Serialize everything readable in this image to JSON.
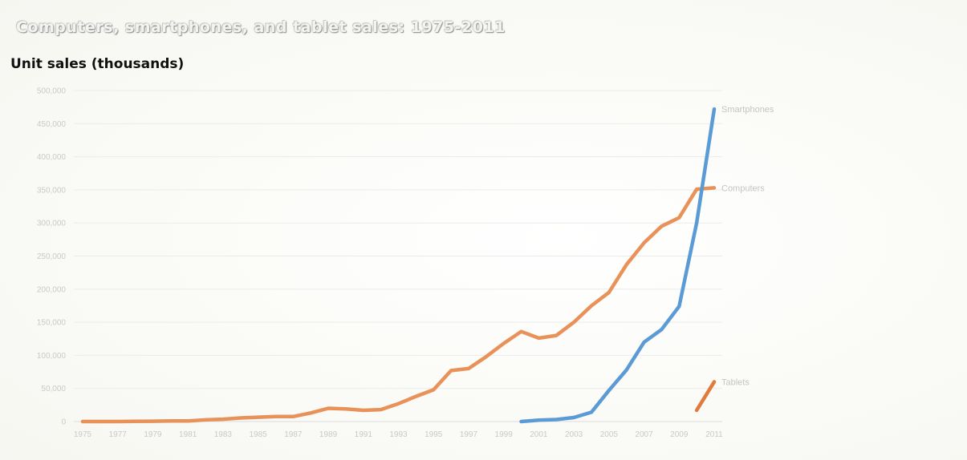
{
  "chart_data": {
    "type": "line",
    "title": "Computers, smartphones, and tablet sales: 1975-2011",
    "ylabel": "Unit sales (thousands)",
    "xlabel": "",
    "xlim": [
      1975,
      2011
    ],
    "ylim": [
      0,
      500000
    ],
    "x_ticks": [
      "1975",
      "1977",
      "1979",
      "1981",
      "1983",
      "1985",
      "1987",
      "1989",
      "1991",
      "1993",
      "1995",
      "1997",
      "1999",
      "2001",
      "2003",
      "2005",
      "2007",
      "2009",
      "2011"
    ],
    "y_ticks": [
      "0",
      "50,000",
      "100,000",
      "150,000",
      "200,000",
      "250,000",
      "300,000",
      "350,000",
      "400,000",
      "450,000",
      "500,000"
    ],
    "y_tick_values": [
      0,
      50000,
      100000,
      150000,
      200000,
      250000,
      300000,
      350000,
      400000,
      450000,
      500000
    ],
    "grid": true,
    "legend": "inline labels at line ends",
    "series": [
      {
        "name": "Computers",
        "color": "#e8925a",
        "x": [
          1975,
          1976,
          1977,
          1978,
          1979,
          1980,
          1981,
          1982,
          1983,
          1984,
          1985,
          1986,
          1987,
          1988,
          1989,
          1990,
          1991,
          1992,
          1993,
          1994,
          1995,
          1996,
          1997,
          1998,
          1999,
          2000,
          2001,
          2002,
          2003,
          2004,
          2005,
          2006,
          2007,
          2008,
          2009,
          2010,
          2011
        ],
        "y": [
          0,
          0,
          0,
          200,
          500,
          800,
          1000,
          2500,
          3500,
          5500,
          6500,
          7500,
          7500,
          13000,
          20000,
          19000,
          17000,
          18000,
          27000,
          38000,
          48000,
          77000,
          80000,
          98000,
          118000,
          136000,
          126000,
          130000,
          150000,
          175000,
          195000,
          237000,
          270000,
          295000,
          308000,
          351000,
          353000
        ]
      },
      {
        "name": "Smartphones",
        "color": "#5b9bd5",
        "x": [
          2000,
          2001,
          2002,
          2003,
          2004,
          2005,
          2006,
          2007,
          2008,
          2009,
          2010,
          2011
        ],
        "y": [
          0,
          2000,
          3000,
          6000,
          14000,
          47000,
          78000,
          120000,
          139000,
          174000,
          300000,
          472000
        ]
      },
      {
        "name": "Tablets",
        "color": "#e07b3c",
        "x": [
          2010,
          2011
        ],
        "y": [
          17000,
          60000
        ]
      }
    ]
  }
}
